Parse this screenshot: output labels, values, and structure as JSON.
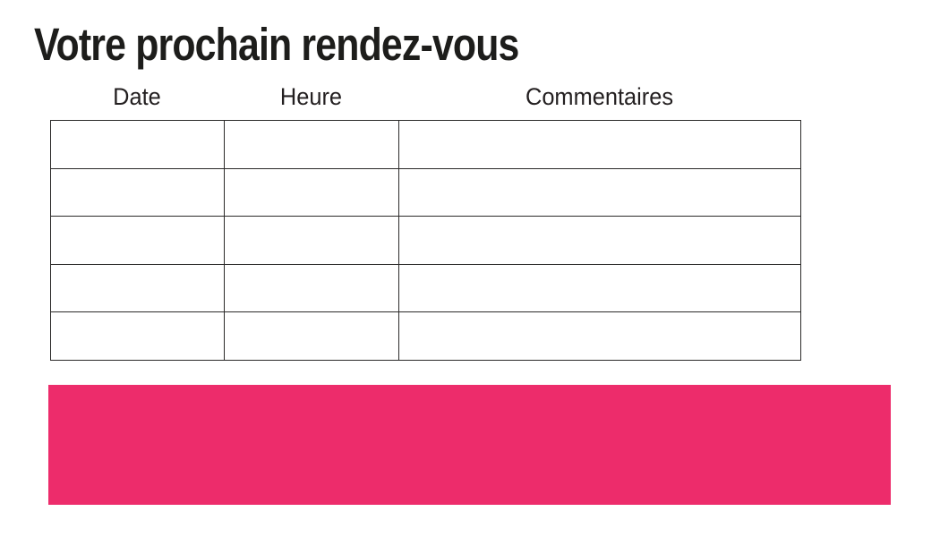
{
  "title": "Votre prochain rendez-vous",
  "table": {
    "headers": [
      "Date",
      "Heure",
      "Commentaires"
    ],
    "row_count": 5,
    "rows": [
      [
        "",
        "",
        ""
      ],
      [
        "",
        "",
        ""
      ],
      [
        "",
        "",
        ""
      ],
      [
        "",
        "",
        ""
      ],
      [
        "",
        "",
        ""
      ]
    ]
  },
  "colors": {
    "accent_pink": "#ed2c6b",
    "text": "#231f20",
    "title_text": "#1d1d1b",
    "table_border": "#2b2a29",
    "background": "#ffffff"
  }
}
